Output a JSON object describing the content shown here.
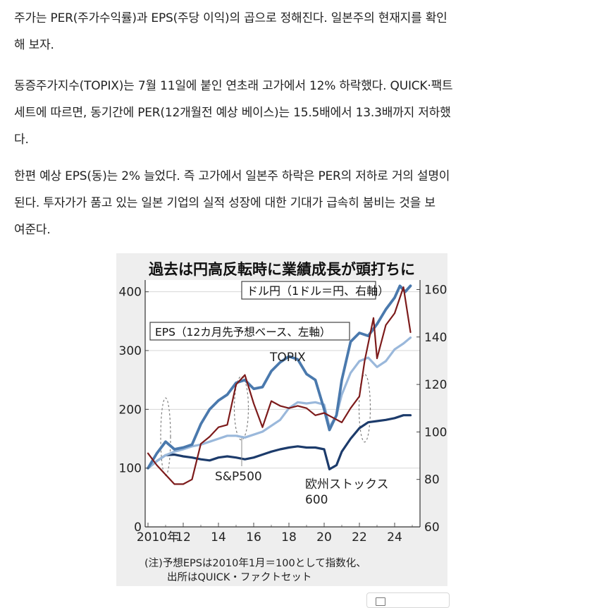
{
  "article": {
    "paragraphs": [
      [
        "주가는 PER(주가수익률)과 EPS(주당 이익)의 곱으로 정해진다. 일본주의 현재지를 확인",
        "해 보자."
      ],
      [
        "동증주가지수(TOPIX)는 7월 11일에 붙인 연초래 고가에서 12% 하락했다. QUICK·팩트",
        "세트에 따르면, 동기간에 PER(12개월전 예상 베이스)는 15.5배에서 13.3배까지 저하했",
        "다."
      ],
      [
        "한편 예상 EPS(동)는 2% 늘었다. 즉 고가에서 일본주 하락은 PER의 저하로 거의 설명이",
        "된다. 투자가가 품고 있는 일본 기업의 실적 성장에 대한 기대가 급속히 붐비는 것을 보",
        "여준다."
      ]
    ]
  },
  "chart_data": {
    "type": "line",
    "title": "過去は円高反転時に業績成長が頭打ちに",
    "legend": {
      "eps": "EPS（12カ月先予想ベース、左軸）",
      "usdjpy": "ドル円（1ドル＝円、右軸）"
    },
    "xlabel": "",
    "x_ticks": [
      "2010年",
      "12",
      "14",
      "16",
      "18",
      "20",
      "22",
      "24"
    ],
    "xlim": [
      2010,
      2025
    ],
    "left_axis": {
      "ticks": [
        "0",
        "100",
        "200",
        "300",
        "400"
      ],
      "ylim": [
        0,
        420
      ]
    },
    "right_axis": {
      "ticks": [
        "60",
        "80",
        "100",
        "120",
        "140",
        "160"
      ],
      "ylim": [
        60,
        164
      ]
    },
    "note_lines": [
      "(注)予想EPSは2010年1月＝100として指数化、",
      "出所はQUICK・ファクトセット"
    ],
    "colors": {
      "topix": "#4a79ad",
      "sp500": "#9ab8db",
      "europe600": "#1c3b6b",
      "usdjpy": "#7d1b1b",
      "highlight": "#808080"
    },
    "series": [
      {
        "name": "TOPIX",
        "axis": "left",
        "x": [
          2010,
          2010.5,
          2011,
          2011.5,
          2012,
          2012.5,
          2013,
          2013.5,
          2014,
          2014.5,
          2015,
          2015.5,
          2016,
          2016.5,
          2017,
          2017.5,
          2018,
          2018.5,
          2019,
          2019.5,
          2020,
          2020.3,
          2020.7,
          2021,
          2021.5,
          2022,
          2022.5,
          2023,
          2023.5,
          2024,
          2024.3,
          2024.6,
          2024.9
        ],
        "values": [
          100,
          125,
          145,
          132,
          135,
          140,
          175,
          200,
          215,
          225,
          245,
          250,
          235,
          238,
          265,
          280,
          290,
          285,
          260,
          250,
          200,
          165,
          190,
          250,
          315,
          330,
          325,
          345,
          370,
          390,
          410,
          400,
          410
        ]
      },
      {
        "name": "S&P500",
        "axis": "left",
        "x": [
          2010,
          2010.5,
          2011,
          2011.5,
          2012,
          2012.5,
          2013,
          2013.5,
          2014,
          2014.5,
          2015,
          2015.5,
          2016,
          2016.5,
          2017,
          2017.5,
          2018,
          2018.5,
          2019,
          2019.5,
          2020,
          2020.3,
          2020.7,
          2021,
          2021.5,
          2022,
          2022.5,
          2023,
          2023.5,
          2024,
          2024.5,
          2024.9
        ],
        "values": [
          100,
          112,
          122,
          128,
          132,
          137,
          140,
          145,
          150,
          155,
          155,
          152,
          157,
          162,
          172,
          182,
          202,
          212,
          210,
          212,
          208,
          170,
          190,
          225,
          262,
          282,
          288,
          272,
          282,
          302,
          312,
          322
        ]
      },
      {
        "name": "欧州ストックス600",
        "axis": "left",
        "x": [
          2010,
          2010.5,
          2011,
          2011.5,
          2012,
          2012.5,
          2013,
          2013.5,
          2014,
          2014.5,
          2015,
          2015.5,
          2016,
          2016.5,
          2017,
          2017.5,
          2018,
          2018.5,
          2019,
          2019.5,
          2020,
          2020.3,
          2020.7,
          2021,
          2021.5,
          2022,
          2022.5,
          2023,
          2023.5,
          2024,
          2024.5,
          2024.9
        ],
        "values": [
          100,
          112,
          122,
          123,
          120,
          118,
          115,
          113,
          118,
          120,
          118,
          115,
          118,
          123,
          128,
          132,
          135,
          137,
          135,
          135,
          132,
          98,
          105,
          128,
          150,
          168,
          178,
          180,
          182,
          185,
          190,
          190
        ]
      },
      {
        "name": "ドル円",
        "axis": "right",
        "x": [
          2010,
          2010.5,
          2011,
          2011.5,
          2012,
          2012.5,
          2013,
          2013.5,
          2014,
          2014.5,
          2015,
          2015.5,
          2016,
          2016.5,
          2017,
          2017.5,
          2018,
          2018.5,
          2019,
          2019.5,
          2020,
          2020.5,
          2021,
          2021.5,
          2022,
          2022.3,
          2022.8,
          2023,
          2023.5,
          2024,
          2024.5,
          2024.9
        ],
        "values": [
          91,
          86,
          82,
          78,
          78,
          80,
          95,
          98,
          102,
          103,
          120,
          124,
          112,
          102,
          113,
          111,
          110,
          111,
          110,
          107,
          108,
          106,
          104,
          110,
          115,
          130,
          148,
          131,
          145,
          150,
          161,
          142
        ]
      }
    ]
  }
}
